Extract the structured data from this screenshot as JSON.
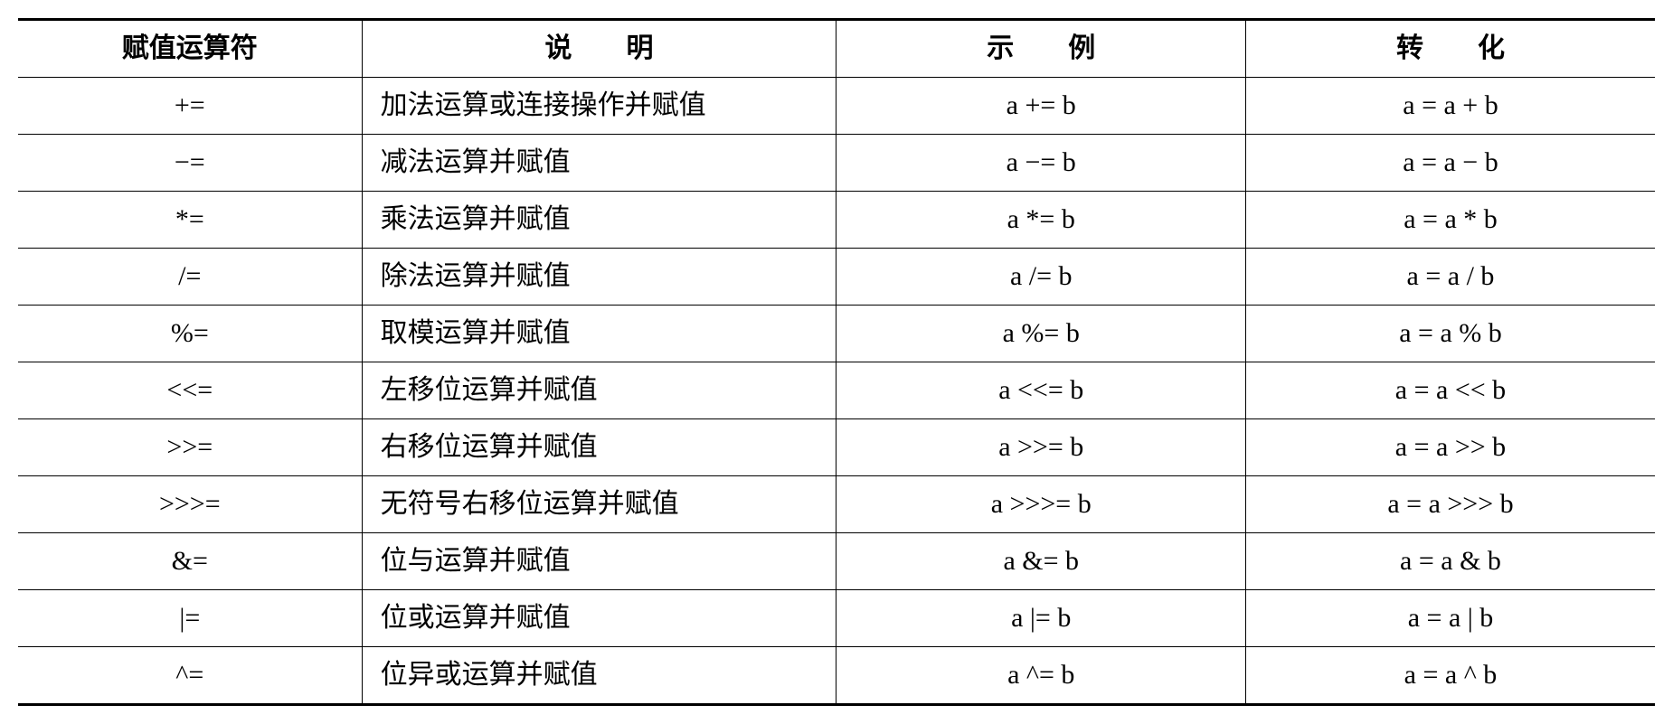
{
  "table": {
    "type": "table",
    "background_color": "#ffffff",
    "text_color": "#000000",
    "border_color": "#000000",
    "header_fontsize": 30,
    "body_fontsize": 30,
    "header_fontweight": "bold",
    "top_border_width": 3,
    "inner_border_width": 1.5,
    "bottom_border_width": 3,
    "columns": [
      {
        "label": "赋值运算符",
        "align": "center",
        "width_pct": 21,
        "spaced": false
      },
      {
        "label": "说　　明",
        "align": "left",
        "width_pct": 29,
        "spaced": false
      },
      {
        "label": "示　　例",
        "align": "center",
        "width_pct": 25,
        "spaced": false
      },
      {
        "label": "转　　化",
        "align": "center",
        "width_pct": 25,
        "spaced": false
      }
    ],
    "rows": [
      {
        "operator": "+=",
        "description": "加法运算或连接操作并赋值",
        "example": "a += b",
        "conversion": "a = a + b"
      },
      {
        "operator": "−=",
        "description": "减法运算并赋值",
        "example": "a −= b",
        "conversion": "a = a − b"
      },
      {
        "operator": "*=",
        "description": "乘法运算并赋值",
        "example": "a *= b",
        "conversion": "a = a * b"
      },
      {
        "operator": "/=",
        "description": "除法运算并赋值",
        "example": "a /= b",
        "conversion": "a = a / b"
      },
      {
        "operator": "%=",
        "description": "取模运算并赋值",
        "example": "a %= b",
        "conversion": "a = a % b"
      },
      {
        "operator": "<<=",
        "description": "左移位运算并赋值",
        "example": "a <<= b",
        "conversion": "a = a << b"
      },
      {
        "operator": ">>=",
        "description": "右移位运算并赋值",
        "example": "a >>= b",
        "conversion": "a = a >> b"
      },
      {
        "operator": ">>>=",
        "description": "无符号右移位运算并赋值",
        "example": "a >>>= b",
        "conversion": "a = a >>> b"
      },
      {
        "operator": "&=",
        "description": "位与运算并赋值",
        "example": "a &= b",
        "conversion": "a = a & b"
      },
      {
        "operator": "|=",
        "description": "位或运算并赋值",
        "example": "a |= b",
        "conversion": "a = a | b"
      },
      {
        "operator": "^=",
        "description": "位异或运算并赋值",
        "example": "a ^= b",
        "conversion": "a = a ^ b"
      }
    ]
  }
}
